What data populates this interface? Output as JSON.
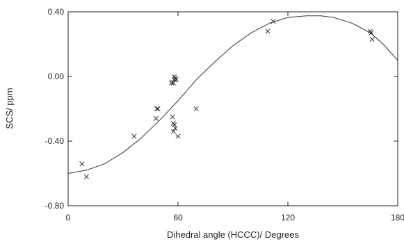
{
  "chart_data": {
    "type": "scatter",
    "title": "",
    "xlabel": "Dihedral angle (HCCC)/ Degrees",
    "ylabel": "SCS/ ppm",
    "xlim": [
      0,
      180
    ],
    "ylim": [
      -0.8,
      0.4
    ],
    "x_ticks": [
      0,
      60,
      120,
      180
    ],
    "x_tick_labels": [
      "0",
      "60",
      "120",
      "180"
    ],
    "y_ticks": [
      0.4,
      0.0,
      -0.4,
      -0.8
    ],
    "y_tick_labels": [
      "0.40",
      "0.00",
      "-0.40",
      "-0.80"
    ],
    "grid": false,
    "marker": "x",
    "points": [
      {
        "x": 7.5,
        "y": -0.54
      },
      {
        "x": 10,
        "y": -0.62
      },
      {
        "x": 36,
        "y": -0.37
      },
      {
        "x": 48.5,
        "y": -0.2
      },
      {
        "x": 49,
        "y": -0.2
      },
      {
        "x": 48,
        "y": -0.26
      },
      {
        "x": 56.5,
        "y": -0.04
      },
      {
        "x": 57,
        "y": -0.035
      },
      {
        "x": 57.5,
        "y": -0.04
      },
      {
        "x": 58,
        "y": -0.02
      },
      {
        "x": 58.5,
        "y": -0.01
      },
      {
        "x": 59,
        "y": -0.02
      },
      {
        "x": 58,
        "y": 0.0
      },
      {
        "x": 57,
        "y": -0.25
      },
      {
        "x": 57.5,
        "y": -0.29
      },
      {
        "x": 58,
        "y": -0.3
      },
      {
        "x": 58.5,
        "y": -0.32
      },
      {
        "x": 57.5,
        "y": -0.34
      },
      {
        "x": 60,
        "y": -0.37
      },
      {
        "x": 70,
        "y": -0.2
      },
      {
        "x": 109,
        "y": 0.28
      },
      {
        "x": 112,
        "y": 0.34
      },
      {
        "x": 165,
        "y": 0.28
      },
      {
        "x": 165.5,
        "y": 0.27
      },
      {
        "x": 166,
        "y": 0.23
      }
    ],
    "fit_curve": [
      {
        "x": 0,
        "y": -0.6
      },
      {
        "x": 10,
        "y": -0.58
      },
      {
        "x": 20,
        "y": -0.54
      },
      {
        "x": 30,
        "y": -0.47
      },
      {
        "x": 40,
        "y": -0.38
      },
      {
        "x": 50,
        "y": -0.27
      },
      {
        "x": 60,
        "y": -0.15
      },
      {
        "x": 70,
        "y": -0.02
      },
      {
        "x": 80,
        "y": 0.09
      },
      {
        "x": 90,
        "y": 0.19
      },
      {
        "x": 100,
        "y": 0.27
      },
      {
        "x": 110,
        "y": 0.33
      },
      {
        "x": 120,
        "y": 0.365
      },
      {
        "x": 130,
        "y": 0.375
      },
      {
        "x": 138,
        "y": 0.375
      },
      {
        "x": 145,
        "y": 0.365
      },
      {
        "x": 155,
        "y": 0.33
      },
      {
        "x": 165,
        "y": 0.27
      },
      {
        "x": 172,
        "y": 0.2
      },
      {
        "x": 180,
        "y": 0.1
      }
    ]
  }
}
